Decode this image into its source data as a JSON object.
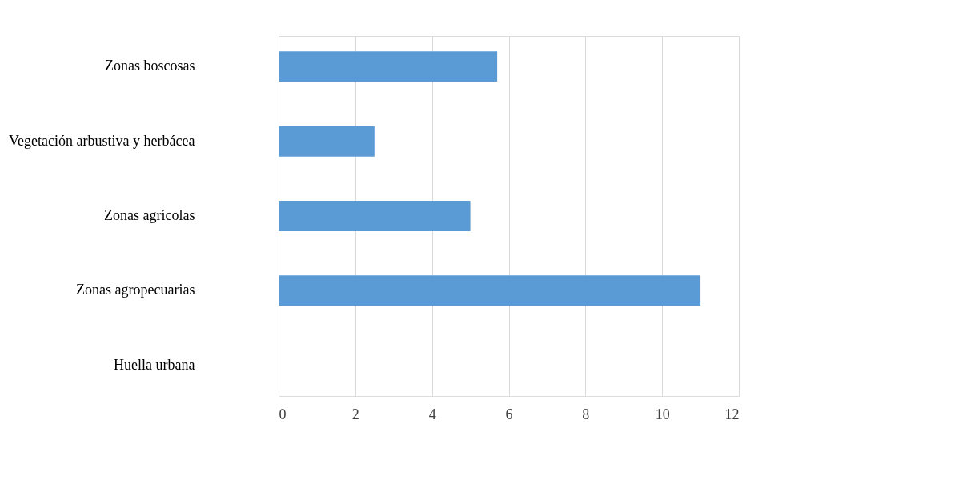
{
  "chart_data": {
    "type": "bar",
    "orientation": "horizontal",
    "categories": [
      "Zonas boscosas",
      "Vegetación arbustiva y herbácea",
      "Zonas agrícolas",
      "Zonas agropecuarias",
      "Huella urbana"
    ],
    "values": [
      5.7,
      2.5,
      5,
      11,
      0
    ],
    "color": "#5b9bd5",
    "xlim": [
      0,
      12
    ],
    "xticks": [
      0,
      2,
      4,
      6,
      8,
      10,
      12
    ],
    "grid": "x"
  }
}
